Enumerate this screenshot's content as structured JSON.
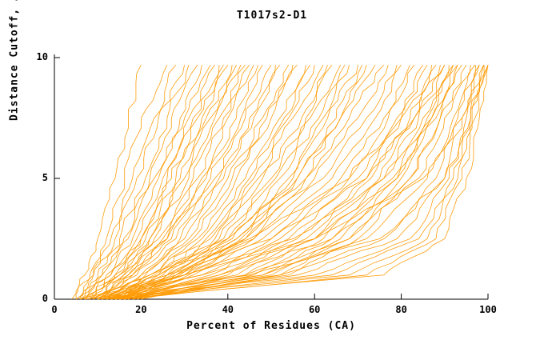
{
  "chart_data": {
    "type": "line",
    "title": "T1017s2-D1",
    "xlabel": "Percent of Residues (CA)",
    "ylabel": "Distance Cutoff, A",
    "xlim": [
      0,
      100
    ],
    "ylim": [
      0,
      10
    ],
    "xticks": [
      0,
      20,
      40,
      60,
      80,
      100
    ],
    "yticks": [
      0,
      5,
      10
    ],
    "legend": "none",
    "grid": false,
    "line_color": "#FF9900",
    "axis_color": "#000000",
    "y_levels": [
      0,
      1,
      2.5,
      5,
      7.5,
      9.7
    ],
    "curves": [
      {
        "x": [
          5,
          7,
          10,
          14,
          17,
          20
        ]
      },
      {
        "x": [
          4,
          8,
          12,
          16,
          20,
          26
        ]
      },
      {
        "x": [
          5,
          9,
          13,
          18,
          23,
          28
        ]
      },
      {
        "x": [
          6,
          9,
          14,
          19,
          24,
          30
        ]
      },
      {
        "x": [
          5,
          10,
          15,
          21,
          26,
          31
        ]
      },
      {
        "x": [
          6,
          11,
          16,
          22,
          27,
          33
        ]
      },
      {
        "x": [
          7,
          11,
          17,
          23,
          29,
          34
        ]
      },
      {
        "x": [
          6,
          12,
          18,
          24,
          30,
          36
        ]
      },
      {
        "x": [
          7,
          13,
          19,
          25,
          31,
          37
        ]
      },
      {
        "x": [
          8,
          13,
          20,
          26,
          32,
          38
        ]
      },
      {
        "x": [
          7,
          14,
          20,
          27,
          33,
          39
        ]
      },
      {
        "x": [
          8,
          14,
          21,
          28,
          34,
          40
        ]
      },
      {
        "x": [
          9,
          15,
          22,
          29,
          35,
          41
        ]
      },
      {
        "x": [
          8,
          15,
          22,
          30,
          36,
          42
        ]
      },
      {
        "x": [
          9,
          16,
          23,
          31,
          37,
          43
        ]
      },
      {
        "x": [
          10,
          16,
          24,
          32,
          38,
          44
        ]
      },
      {
        "x": [
          9,
          17,
          25,
          33,
          39,
          45
        ]
      },
      {
        "x": [
          10,
          17,
          26,
          34,
          40,
          46
        ]
      },
      {
        "x": [
          10,
          18,
          26,
          35,
          42,
          47
        ]
      },
      {
        "x": [
          11,
          18,
          27,
          36,
          43,
          48
        ]
      },
      {
        "x": [
          10,
          19,
          28,
          37,
          44,
          50
        ]
      },
      {
        "x": [
          11,
          20,
          29,
          38,
          45,
          51
        ]
      },
      {
        "x": [
          12,
          20,
          30,
          39,
          46,
          52
        ]
      },
      {
        "x": [
          11,
          21,
          31,
          40,
          48,
          54
        ]
      },
      {
        "x": [
          12,
          22,
          32,
          41,
          49,
          55
        ]
      },
      {
        "x": [
          13,
          22,
          33,
          42,
          50,
          56
        ]
      },
      {
        "x": [
          12,
          23,
          34,
          44,
          52,
          58
        ]
      },
      {
        "x": [
          13,
          24,
          35,
          45,
          53,
          59
        ]
      },
      {
        "x": [
          14,
          24,
          36,
          46,
          54,
          60
        ]
      },
      {
        "x": [
          13,
          25,
          37,
          47,
          55,
          62
        ]
      },
      {
        "x": [
          14,
          26,
          38,
          48,
          57,
          63
        ]
      },
      {
        "x": [
          15,
          26,
          39,
          50,
          58,
          64
        ]
      },
      {
        "x": [
          14,
          27,
          40,
          51,
          59,
          66
        ]
      },
      {
        "x": [
          15,
          28,
          41,
          52,
          61,
          67
        ]
      },
      {
        "x": [
          16,
          28,
          42,
          54,
          62,
          68
        ]
      },
      {
        "x": [
          15,
          29,
          43,
          55,
          63,
          70
        ]
      },
      {
        "x": [
          16,
          30,
          44,
          56,
          65,
          71
        ]
      },
      {
        "x": [
          17,
          31,
          46,
          58,
          66,
          72
        ]
      },
      {
        "x": [
          12,
          24,
          40,
          56,
          66,
          74
        ]
      },
      {
        "x": [
          13,
          26,
          42,
          58,
          68,
          76
        ]
      },
      {
        "x": [
          14,
          28,
          44,
          60,
          70,
          77
        ]
      },
      {
        "x": [
          12,
          30,
          46,
          62,
          72,
          79
        ]
      },
      {
        "x": [
          15,
          32,
          48,
          64,
          74,
          80
        ]
      },
      {
        "x": [
          13,
          34,
          50,
          66,
          76,
          82
        ]
      },
      {
        "x": [
          16,
          36,
          52,
          68,
          77,
          83
        ]
      },
      {
        "x": [
          14,
          38,
          54,
          70,
          79,
          85
        ]
      },
      {
        "x": [
          17,
          40,
          56,
          72,
          80,
          86
        ]
      },
      {
        "x": [
          15,
          42,
          58,
          73,
          82,
          87
        ]
      },
      {
        "x": [
          18,
          44,
          60,
          75,
          83,
          88
        ]
      },
      {
        "x": [
          16,
          46,
          62,
          76,
          84,
          89
        ]
      },
      {
        "x": [
          19,
          48,
          64,
          78,
          86,
          90
        ]
      },
      {
        "x": [
          17,
          50,
          66,
          79,
          87,
          91
        ]
      },
      {
        "x": [
          20,
          52,
          68,
          80,
          88,
          92
        ]
      },
      {
        "x": [
          18,
          54,
          70,
          82,
          89,
          93
        ]
      },
      {
        "x": [
          8,
          22,
          45,
          68,
          80,
          90
        ]
      },
      {
        "x": [
          9,
          26,
          50,
          72,
          83,
          92
        ]
      },
      {
        "x": [
          10,
          30,
          55,
          76,
          85,
          93
        ]
      },
      {
        "x": [
          11,
          34,
          60,
          79,
          87,
          94
        ]
      },
      {
        "x": [
          12,
          38,
          64,
          82,
          89,
          95
        ]
      },
      {
        "x": [
          10,
          44,
          68,
          84,
          90,
          96
        ]
      },
      {
        "x": [
          13,
          48,
          72,
          86,
          92,
          97
        ]
      },
      {
        "x": [
          11,
          52,
          76,
          88,
          93,
          97
        ]
      },
      {
        "x": [
          14,
          56,
          79,
          90,
          94,
          98
        ]
      },
      {
        "x": [
          12,
          60,
          82,
          91,
          95,
          98
        ]
      },
      {
        "x": [
          15,
          64,
          84,
          92,
          96,
          99
        ]
      },
      {
        "x": [
          13,
          68,
          86,
          93,
          96,
          99
        ]
      },
      {
        "x": [
          16,
          72,
          88,
          94,
          97,
          100
        ]
      },
      {
        "x": [
          14,
          76,
          90,
          95,
          98,
          100
        ]
      },
      {
        "x": [
          6,
          30,
          60,
          85,
          94,
          99
        ]
      },
      {
        "x": [
          7,
          45,
          75,
          90,
          96,
          100
        ]
      }
    ]
  }
}
